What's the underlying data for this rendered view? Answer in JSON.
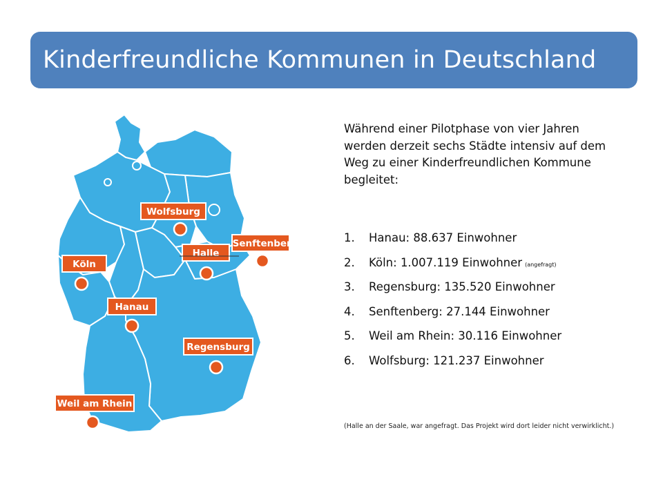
{
  "title": "Kinderfreundliche Kommunen in Deutschland",
  "intro": "Während einer Pilotphase von vier Jahren werden derzeit sechs Städte intensiv auf dem Weg zu einer Kinderfreundlichen Kommune begleitet:",
  "cities": [
    {
      "num": "1.",
      "text": "Hanau: 88.637 Einwohner",
      "note": ""
    },
    {
      "num": "2.",
      "text": "Köln: 1.007.119 Einwohner",
      "note": "(angefragt)"
    },
    {
      "num": "3.",
      "text": "Regensburg:  135.520 Einwohner",
      "note": ""
    },
    {
      "num": "4.",
      "text": "Senftenberg: 27.144 Einwohner",
      "note": ""
    },
    {
      "num": "5.",
      "text": "Weil am Rhein: 30.116 Einwohner",
      "note": ""
    },
    {
      "num": "6.",
      "text": "Wolfsburg: 121.237 Einwohner",
      "note": ""
    }
  ],
  "footnote": "(Halle an der Saale, war angefragt. Das Projekt wird dort leider nicht verwirklicht.)",
  "map": {
    "fill_color": "#3daee3",
    "marker_color": "#e4581f",
    "labels": {
      "wolfsburg": "Wolfsburg",
      "halle": "Halle",
      "senftenberg": "Senftenberg",
      "koeln": "Köln",
      "hanau": "Hanau",
      "regensburg": "Regensburg",
      "weil": "Weil am Rhein"
    }
  }
}
